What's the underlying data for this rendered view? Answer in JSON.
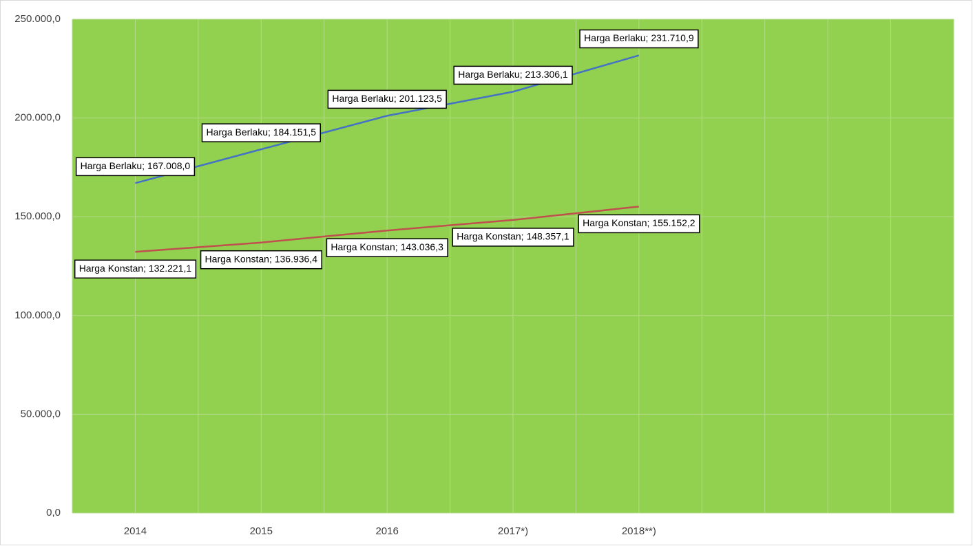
{
  "chart_data": {
    "type": "line",
    "categories": [
      "2014",
      "2015",
      "2016",
      "2017*)",
      "2018**)",
      null,
      null
    ],
    "series": [
      {
        "name": "Harga Berlaku",
        "color": "#4472c4",
        "values": [
          167008.0,
          184151.5,
          201123.5,
          213306.1,
          231710.9,
          null,
          null
        ],
        "value_labels": [
          "Harga Berlaku; 167.008,0",
          "Harga Berlaku; 184.151,5",
          "Harga Berlaku; 201.123,5",
          "Harga Berlaku; 213.306,1",
          "Harga Berlaku;  231.710,9",
          null,
          null
        ]
      },
      {
        "name": "Harga Konstan",
        "color": "#c0504d",
        "values": [
          132221.1,
          136936.4,
          143036.3,
          148357.1,
          155152.2,
          null,
          null
        ],
        "value_labels": [
          "Harga Konstan;  132.221,1",
          "Harga Konstan;  136.936,4",
          "Harga Konstan;  143.036,3",
          "Harga Konstan;  148.357,1",
          "Harga Konstan;  155.152,2",
          null,
          null
        ]
      }
    ],
    "ylim": [
      0,
      250000
    ],
    "yticks": [
      {
        "value": 0,
        "label": "0,0"
      },
      {
        "value": 50000,
        "label": "50.000,0"
      },
      {
        "value": 100000,
        "label": "100.000,0"
      },
      {
        "value": 150000,
        "label": "150.000,0"
      },
      {
        "value": 200000,
        "label": "200.000,0"
      },
      {
        "value": 250000,
        "label": "250.000,0"
      }
    ],
    "grid": true,
    "background": "#92d050"
  }
}
